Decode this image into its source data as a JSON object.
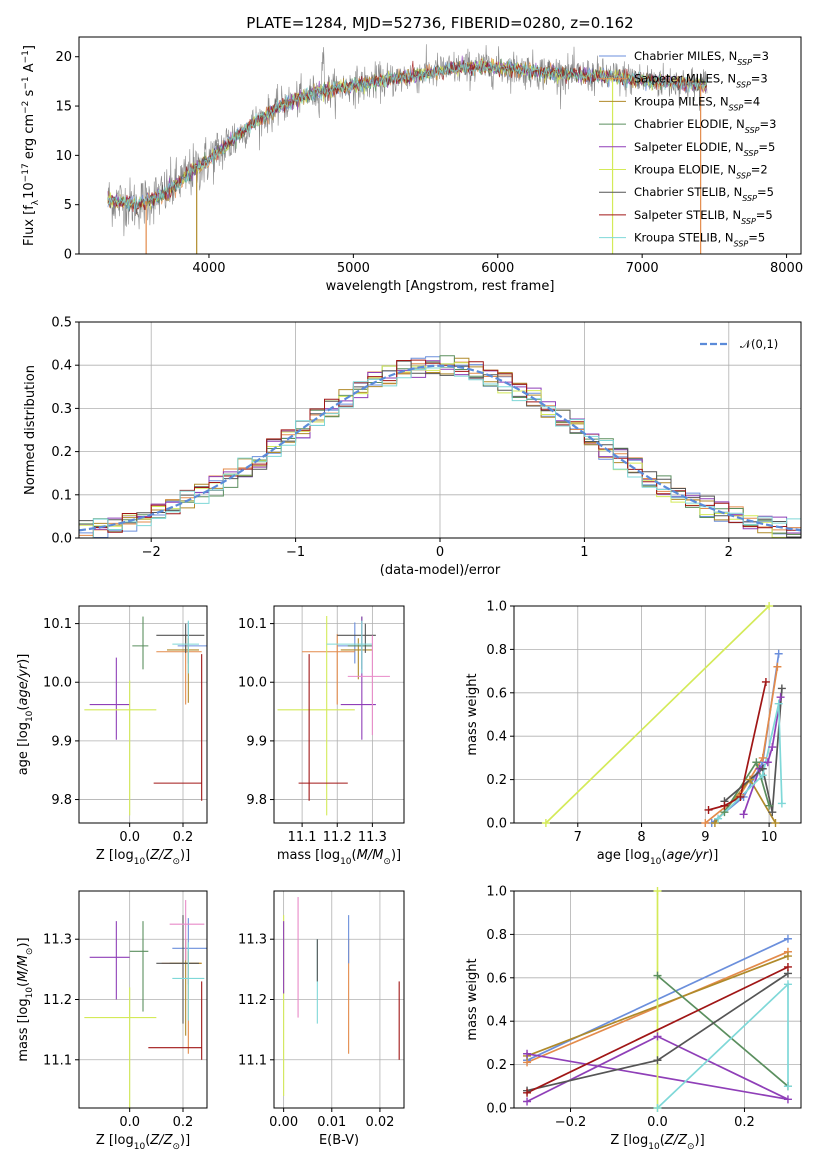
{
  "title": "PLATE=1284, MJD=52736, FIBERID=0280, z=0.162",
  "colors": {
    "Chabrier MILES": "#6b8fdc",
    "Salpeter MILES": "#e38b4b",
    "Kroupa MILES": "#b08a2a",
    "Chabrier ELODIE": "#5b8f5f",
    "Salpeter ELODIE": "#8f3fb8",
    "Kroupa ELODIE": "#d4ea58",
    "Chabrier STELIB": "#555555",
    "Salpeter STELIB": "#a01616",
    "Kroupa STELIB": "#7fd8d8",
    "spectrum": "#888888",
    "gauss": "#5b8bd9"
  },
  "chart_data": [
    {
      "type": "line",
      "panel": "spectrum",
      "xlabel": "wavelength [Angstrom, rest frame]",
      "ylabel": "Flux [f_λ10^-17 erg cm^-2 s^-1 A^-1]",
      "xlim": [
        3100,
        8100
      ],
      "ylim": [
        0,
        22
      ],
      "xticks": [
        4000,
        5000,
        6000,
        7000,
        8000
      ],
      "yticks": [
        0,
        5,
        10,
        15,
        20
      ],
      "legend": [
        {
          "name": "Chabrier MILES",
          "nssp": 3
        },
        {
          "name": "Salpeter MILES",
          "nssp": 3
        },
        {
          "name": "Kroupa MILES",
          "nssp": 4
        },
        {
          "name": "Chabrier ELODIE",
          "nssp": 3
        },
        {
          "name": "Salpeter ELODIE",
          "nssp": 5
        },
        {
          "name": "Kroupa ELODIE",
          "nssp": 2
        },
        {
          "name": "Chabrier STELIB",
          "nssp": 5
        },
        {
          "name": "Salpeter STELIB",
          "nssp": 5
        },
        {
          "name": "Kroupa STELIB",
          "nssp": 5
        }
      ],
      "legend_placement": "top-right",
      "continuum": {
        "x": [
          3300,
          3500,
          3700,
          3900,
          4100,
          4300,
          4500,
          4700,
          4900,
          5100,
          5300,
          5500,
          5700,
          5900,
          6100,
          6300,
          6500,
          6700,
          6900,
          7100,
          7300,
          7500
        ],
        "y": [
          5.5,
          5.0,
          6.2,
          8.5,
          10.8,
          13.2,
          15.0,
          16.2,
          16.8,
          17.3,
          17.8,
          18.3,
          18.8,
          19.0,
          18.8,
          18.5,
          18.2,
          18.0,
          17.8,
          17.5,
          17.3,
          17.0
        ]
      },
      "spikes": [
        {
          "x": 3565,
          "y": 0
        },
        {
          "x": 3915,
          "y": 0
        },
        {
          "x": 6795,
          "y": 0
        },
        {
          "x": 7405,
          "y": 0
        }
      ]
    },
    {
      "type": "bar",
      "panel": "residual-histogram",
      "xlabel": "(data-model)/error",
      "ylabel": "Normed distribution",
      "xlim": [
        -2.5,
        2.5
      ],
      "ylim": [
        0,
        0.5
      ],
      "xticks": [
        -2,
        -1,
        0,
        1,
        2
      ],
      "yticks": [
        0.0,
        0.1,
        0.2,
        0.3,
        0.4,
        0.5
      ],
      "grid": true,
      "legend": [
        {
          "name": "𝒩(0,1)"
        }
      ],
      "legend_placement": "top-right",
      "bin_width": 0.1
    },
    {
      "type": "scatter",
      "panel": "age-vs-Z",
      "xlabel": "Z [log10(Z/Z⊙)]",
      "ylabel": "age [log10(age/yr)]",
      "xlim": [
        -0.19,
        0.29
      ],
      "ylim": [
        9.76,
        10.13
      ],
      "xticks": [
        0.0,
        0.2
      ],
      "yticks": [
        9.8,
        9.9,
        10.0,
        10.1
      ],
      "grid": true,
      "points": [
        {
          "model": "Chabrier MILES",
          "x": 0.22,
          "y": 10.062,
          "xerr": [
            0.04,
            0.07
          ],
          "yerr": [
            0.03,
            0.04
          ]
        },
        {
          "model": "Salpeter MILES",
          "x": 0.21,
          "y": 10.052,
          "xerr": [
            0.11,
            0.06
          ],
          "yerr": [
            0.09,
            0.03
          ]
        },
        {
          "model": "Kroupa MILES",
          "x": 0.22,
          "y": 10.055,
          "xerr": [
            0.08,
            0.04
          ],
          "yerr": [
            0.09,
            0.02
          ]
        },
        {
          "model": "Chabrier ELODIE",
          "x": 0.05,
          "y": 10.062,
          "xerr": [
            0.04,
            0.02
          ],
          "yerr": [
            0.04,
            0.05
          ]
        },
        {
          "model": "Salpeter ELODIE",
          "x": -0.05,
          "y": 9.962,
          "xerr": [
            0.1,
            0.05
          ],
          "yerr": [
            0.06,
            0.08
          ]
        },
        {
          "model": "Kroupa ELODIE",
          "x": 0.0,
          "y": 9.953,
          "xerr": [
            0.17,
            0.1
          ],
          "yerr": [
            0.18,
            0.05
          ]
        },
        {
          "model": "Chabrier STELIB",
          "x": 0.21,
          "y": 10.08,
          "xerr": [
            0.11,
            0.07
          ],
          "yerr": [
            0.03,
            0.02
          ]
        },
        {
          "model": "Salpeter STELIB",
          "x": 0.27,
          "y": 9.828,
          "xerr": [
            0.18,
            0.0
          ],
          "yerr": [
            0.03,
            0.22
          ]
        },
        {
          "model": "Kroupa STELIB",
          "x": 0.22,
          "y": 10.065,
          "xerr": [
            0.06,
            0.04
          ],
          "yerr": [
            0.05,
            0.04
          ]
        },
        {
          "model": "Kroupa MILES",
          "x": 0.21,
          "y": 10.01,
          "xerr": [
            0.0,
            0.0
          ],
          "yerr": [
            0.0,
            0.0
          ],
          "note": "pink"
        }
      ]
    },
    {
      "type": "scatter",
      "panel": "age-vs-mass",
      "xlabel": "mass [log10(M/M⊙)]",
      "ylabel": "",
      "xlim": [
        11.02,
        11.39
      ],
      "ylim": [
        9.76,
        10.13
      ],
      "xticks": [
        11.1,
        11.2,
        11.3
      ],
      "yticks": [
        9.8,
        9.9,
        10.0,
        10.1
      ],
      "grid": true
    },
    {
      "type": "line",
      "panel": "massweight-vs-age",
      "xlabel": "age [log10(age/yr)]",
      "ylabel": "mass weight",
      "xlim": [
        6.0,
        10.5
      ],
      "ylim": [
        0,
        1
      ],
      "xticks": [
        7,
        8,
        9,
        10
      ],
      "yticks": [
        0.0,
        0.2,
        0.4,
        0.6,
        0.8,
        1.0
      ],
      "grid": true,
      "series": [
        {
          "model": "Chabrier MILES",
          "x": [
            9.1,
            9.6,
            9.9,
            10.15
          ],
          "y": [
            0.0,
            0.12,
            0.28,
            0.78
          ]
        },
        {
          "model": "Salpeter MILES",
          "x": [
            9.0,
            9.55,
            9.9,
            10.13
          ],
          "y": [
            0.0,
            0.13,
            0.3,
            0.72
          ]
        },
        {
          "model": "Kroupa MILES",
          "x": [
            9.15,
            9.7,
            10.1
          ],
          "y": [
            0.0,
            0.2,
            0.0
          ]
        },
        {
          "model": "Chabrier ELODIE",
          "x": [
            9.3,
            9.8,
            10.0
          ],
          "y": [
            0.05,
            0.28,
            0.08
          ]
        },
        {
          "model": "Salpeter ELODIE",
          "x": [
            9.6,
            9.85,
            9.98,
            10.05,
            10.18
          ],
          "y": [
            0.04,
            0.25,
            0.28,
            0.35,
            0.58
          ]
        },
        {
          "model": "Kroupa ELODIE",
          "x": [
            6.5,
            10.0
          ],
          "y": [
            0.0,
            1.0
          ]
        },
        {
          "model": "Chabrier STELIB",
          "x": [
            9.3,
            9.9,
            10.05,
            10.2
          ],
          "y": [
            0.1,
            0.25,
            0.05,
            0.62
          ]
        },
        {
          "model": "Salpeter STELIB",
          "x": [
            9.05,
            9.3,
            9.55,
            9.95
          ],
          "y": [
            0.06,
            0.08,
            0.12,
            0.65
          ]
        },
        {
          "model": "Kroupa STELIB",
          "x": [
            9.2,
            9.9,
            10.15,
            10.2
          ],
          "y": [
            0.02,
            0.22,
            0.55,
            0.09
          ]
        }
      ]
    },
    {
      "type": "scatter",
      "panel": "mass-vs-Z",
      "xlabel": "Z [log10(Z/Z⊙)]",
      "ylabel": "mass [log10(M/M⊙)]",
      "xlim": [
        -0.19,
        0.29
      ],
      "ylim": [
        11.02,
        11.38
      ],
      "xticks": [
        0.0,
        0.2
      ],
      "yticks": [
        11.1,
        11.2,
        11.3
      ],
      "grid": true
    },
    {
      "type": "scatter",
      "panel": "mass-vs-EBV",
      "xlabel": "E(B-V)",
      "ylabel": "",
      "xlim": [
        -0.002,
        0.025
      ],
      "ylim": [
        11.02,
        11.38
      ],
      "xticks": [
        0.0,
        0.01,
        0.02
      ],
      "yticks": [
        11.1,
        11.2,
        11.3
      ],
      "grid": true
    },
    {
      "type": "line",
      "panel": "massweight-vs-Z",
      "xlabel": "Z [log10(Z/Z⊙)]",
      "ylabel": "mass weight",
      "xlim": [
        -0.33,
        0.33
      ],
      "ylim": [
        0,
        1
      ],
      "xticks": [
        -0.2,
        0.0,
        0.2
      ],
      "yticks": [
        0.0,
        0.2,
        0.4,
        0.6,
        0.8,
        1.0
      ],
      "grid": true,
      "series": [
        {
          "model": "Chabrier MILES",
          "x": [
            -0.3,
            0.3
          ],
          "y": [
            0.22,
            0.78
          ]
        },
        {
          "model": "Salpeter MILES",
          "x": [
            -0.3,
            0.3
          ],
          "y": [
            0.21,
            0.72
          ]
        },
        {
          "model": "Kroupa MILES",
          "x": [
            -0.3,
            0.3
          ],
          "y": [
            0.24,
            0.7
          ]
        },
        {
          "model": "Chabrier ELODIE",
          "x": [
            0.0,
            0.3
          ],
          "y": [
            0.61,
            0.1
          ]
        },
        {
          "model": "Salpeter ELODIE",
          "x": [
            -0.3,
            0.0,
            0.3,
            -0.3
          ],
          "y": [
            0.03,
            0.33,
            0.04,
            0.25
          ]
        },
        {
          "model": "Kroupa ELODIE",
          "x": [
            0.0,
            0.0
          ],
          "y": [
            0.0,
            1.0
          ]
        },
        {
          "model": "Chabrier STELIB",
          "x": [
            -0.3,
            0.0,
            0.3
          ],
          "y": [
            0.08,
            0.22,
            0.62
          ]
        },
        {
          "model": "Salpeter STELIB",
          "x": [
            -0.3,
            0.3
          ],
          "y": [
            0.07,
            0.65
          ]
        },
        {
          "model": "Kroupa STELIB",
          "x": [
            0.0,
            0.3,
            0.3
          ],
          "y": [
            0.0,
            0.57,
            0.1
          ]
        }
      ]
    }
  ]
}
